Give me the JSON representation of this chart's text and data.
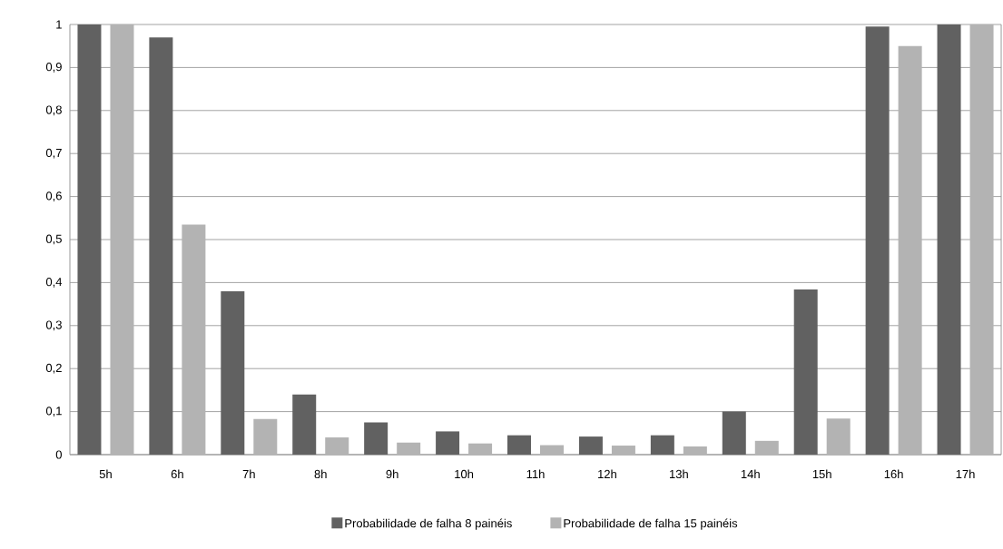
{
  "chart_data": {
    "type": "bar",
    "categories": [
      "5h",
      "6h",
      "7h",
      "8h",
      "9h",
      "10h",
      "11h",
      "12h",
      "13h",
      "14h",
      "15h",
      "16h",
      "17h"
    ],
    "series": [
      {
        "name": "Probabilidade de falha 8 painéis",
        "color": "#616161",
        "values": [
          1,
          0.97,
          0.38,
          0.14,
          0.075,
          0.054,
          0.045,
          0.042,
          0.045,
          0.1,
          0.384,
          0.995,
          1
        ]
      },
      {
        "name": "Probabilidade de falha 15 painéis",
        "color": "#b3b3b3",
        "values": [
          1,
          0.535,
          0.083,
          0.04,
          0.028,
          0.026,
          0.022,
          0.021,
          0.019,
          0.032,
          0.084,
          0.95,
          1
        ]
      }
    ],
    "ylim": [
      0,
      1
    ],
    "yticks": [
      0,
      {
        "value": 0.1,
        "label": "0,1"
      },
      {
        "value": 0.2,
        "label": "0,2"
      },
      {
        "value": 0.3,
        "label": "0,3"
      },
      {
        "value": 0.4,
        "label": "0,4"
      },
      {
        "value": 0.5,
        "label": "0,5"
      },
      {
        "value": 0.6,
        "label": "0,6"
      },
      {
        "value": 0.7,
        "label": "0,7"
      },
      {
        "value": 0.8,
        "label": "0,8"
      },
      {
        "value": 0.9,
        "label": "0,9"
      },
      1
    ],
    "grid": "y",
    "legend": "bottom"
  }
}
